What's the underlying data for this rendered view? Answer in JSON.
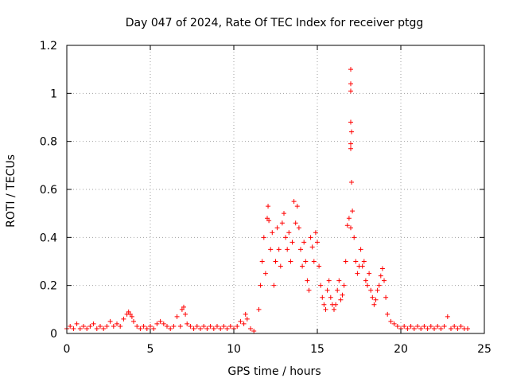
{
  "chart_data": {
    "type": "scatter",
    "title": "Day 047 of 2024, Rate Of TEC Index for receiver ptgg",
    "xlabel": "GPS time / hours",
    "ylabel": "ROTI / TECUs",
    "xlim": [
      0,
      25
    ],
    "ylim": [
      0,
      1.2
    ],
    "xticks": [
      0,
      5,
      10,
      15,
      20,
      25
    ],
    "xtick_labels": [
      "0",
      "5",
      "10",
      "15",
      "20",
      "25"
    ],
    "yticks": [
      0,
      0.2,
      0.4,
      0.6,
      0.8,
      1,
      1.2
    ],
    "ytick_labels": [
      "0",
      "0.2",
      "0.4",
      "0.6",
      "0.8",
      "1",
      "1.2"
    ],
    "grid": true,
    "marker": "+",
    "color": "#ff0000",
    "series": [
      {
        "points": [
          [
            0.0,
            0.02
          ],
          [
            0.2,
            0.03
          ],
          [
            0.4,
            0.02
          ],
          [
            0.6,
            0.04
          ],
          [
            0.8,
            0.02
          ],
          [
            1.0,
            0.03
          ],
          [
            1.2,
            0.02
          ],
          [
            1.4,
            0.03
          ],
          [
            1.6,
            0.04
          ],
          [
            1.8,
            0.02
          ],
          [
            2.0,
            0.03
          ],
          [
            2.2,
            0.02
          ],
          [
            2.4,
            0.03
          ],
          [
            2.6,
            0.05
          ],
          [
            2.8,
            0.03
          ],
          [
            3.0,
            0.04
          ],
          [
            3.2,
            0.03
          ],
          [
            3.4,
            0.06
          ],
          [
            3.6,
            0.08
          ],
          [
            3.7,
            0.09
          ],
          [
            3.8,
            0.08
          ],
          [
            3.9,
            0.07
          ],
          [
            4.0,
            0.05
          ],
          [
            4.2,
            0.03
          ],
          [
            4.4,
            0.02
          ],
          [
            4.6,
            0.03
          ],
          [
            4.8,
            0.02
          ],
          [
            5.0,
            0.03
          ],
          [
            5.2,
            0.02
          ],
          [
            5.4,
            0.04
          ],
          [
            5.6,
            0.05
          ],
          [
            5.8,
            0.04
          ],
          [
            6.0,
            0.03
          ],
          [
            6.2,
            0.02
          ],
          [
            6.4,
            0.03
          ],
          [
            6.6,
            0.07
          ],
          [
            6.8,
            0.03
          ],
          [
            6.9,
            0.1
          ],
          [
            7.0,
            0.11
          ],
          [
            7.1,
            0.08
          ],
          [
            7.2,
            0.04
          ],
          [
            7.4,
            0.03
          ],
          [
            7.6,
            0.02
          ],
          [
            7.8,
            0.03
          ],
          [
            8.0,
            0.02
          ],
          [
            8.2,
            0.03
          ],
          [
            8.4,
            0.02
          ],
          [
            8.6,
            0.03
          ],
          [
            8.8,
            0.02
          ],
          [
            9.0,
            0.03
          ],
          [
            9.2,
            0.02
          ],
          [
            9.4,
            0.03
          ],
          [
            9.6,
            0.02
          ],
          [
            9.8,
            0.03
          ],
          [
            10.0,
            0.02
          ],
          [
            10.2,
            0.03
          ],
          [
            10.4,
            0.05
          ],
          [
            10.6,
            0.04
          ],
          [
            10.7,
            0.08
          ],
          [
            10.8,
            0.06
          ],
          [
            11.0,
            0.02
          ],
          [
            11.2,
            0.01
          ],
          [
            11.5,
            0.1
          ],
          [
            11.6,
            0.2
          ],
          [
            11.7,
            0.3
          ],
          [
            11.8,
            0.4
          ],
          [
            11.9,
            0.25
          ],
          [
            12.0,
            0.48
          ],
          [
            12.05,
            0.53
          ],
          [
            12.1,
            0.47
          ],
          [
            12.2,
            0.35
          ],
          [
            12.3,
            0.42
          ],
          [
            12.4,
            0.2
          ],
          [
            12.5,
            0.3
          ],
          [
            12.6,
            0.44
          ],
          [
            12.7,
            0.35
          ],
          [
            12.8,
            0.28
          ],
          [
            12.9,
            0.46
          ],
          [
            13.0,
            0.5
          ],
          [
            13.1,
            0.4
          ],
          [
            13.2,
            0.35
          ],
          [
            13.3,
            0.42
          ],
          [
            13.4,
            0.3
          ],
          [
            13.5,
            0.38
          ],
          [
            13.6,
            0.55
          ],
          [
            13.7,
            0.46
          ],
          [
            13.8,
            0.53
          ],
          [
            13.9,
            0.44
          ],
          [
            14.0,
            0.35
          ],
          [
            14.1,
            0.28
          ],
          [
            14.2,
            0.38
          ],
          [
            14.3,
            0.3
          ],
          [
            14.4,
            0.22
          ],
          [
            14.5,
            0.18
          ],
          [
            14.6,
            0.4
          ],
          [
            14.7,
            0.36
          ],
          [
            14.8,
            0.3
          ],
          [
            14.9,
            0.42
          ],
          [
            15.0,
            0.38
          ],
          [
            15.1,
            0.28
          ],
          [
            15.2,
            0.2
          ],
          [
            15.3,
            0.15
          ],
          [
            15.4,
            0.12
          ],
          [
            15.5,
            0.1
          ],
          [
            15.6,
            0.18
          ],
          [
            15.7,
            0.22
          ],
          [
            15.8,
            0.15
          ],
          [
            15.9,
            0.12
          ],
          [
            16.0,
            0.1
          ],
          [
            16.1,
            0.12
          ],
          [
            16.2,
            0.18
          ],
          [
            16.3,
            0.22
          ],
          [
            16.4,
            0.14
          ],
          [
            16.5,
            0.16
          ],
          [
            16.6,
            0.2
          ],
          [
            16.7,
            0.3
          ],
          [
            16.8,
            0.45
          ],
          [
            16.9,
            0.48
          ],
          [
            17.0,
            1.1
          ],
          [
            17.0,
            1.04
          ],
          [
            17.0,
            1.01
          ],
          [
            17.0,
            0.88
          ],
          [
            17.05,
            0.84
          ],
          [
            17.0,
            0.79
          ],
          [
            17.0,
            0.77
          ],
          [
            17.05,
            0.63
          ],
          [
            17.1,
            0.51
          ],
          [
            17.0,
            0.44
          ],
          [
            17.2,
            0.4
          ],
          [
            17.3,
            0.3
          ],
          [
            17.4,
            0.25
          ],
          [
            17.5,
            0.28
          ],
          [
            17.6,
            0.35
          ],
          [
            17.7,
            0.28
          ],
          [
            17.8,
            0.3
          ],
          [
            17.9,
            0.22
          ],
          [
            18.0,
            0.2
          ],
          [
            18.1,
            0.25
          ],
          [
            18.2,
            0.18
          ],
          [
            18.3,
            0.15
          ],
          [
            18.4,
            0.12
          ],
          [
            18.5,
            0.14
          ],
          [
            18.6,
            0.18
          ],
          [
            18.7,
            0.2
          ],
          [
            18.8,
            0.24
          ],
          [
            18.9,
            0.27
          ],
          [
            19.0,
            0.22
          ],
          [
            19.1,
            0.15
          ],
          [
            19.2,
            0.08
          ],
          [
            19.4,
            0.05
          ],
          [
            19.6,
            0.04
          ],
          [
            19.8,
            0.03
          ],
          [
            20.0,
            0.02
          ],
          [
            20.2,
            0.03
          ],
          [
            20.4,
            0.02
          ],
          [
            20.6,
            0.03
          ],
          [
            20.8,
            0.02
          ],
          [
            21.0,
            0.03
          ],
          [
            21.2,
            0.02
          ],
          [
            21.4,
            0.03
          ],
          [
            21.6,
            0.02
          ],
          [
            21.8,
            0.03
          ],
          [
            22.0,
            0.02
          ],
          [
            22.2,
            0.03
          ],
          [
            22.4,
            0.02
          ],
          [
            22.6,
            0.03
          ],
          [
            22.8,
            0.07
          ],
          [
            23.0,
            0.02
          ],
          [
            23.2,
            0.03
          ],
          [
            23.4,
            0.02
          ],
          [
            23.6,
            0.03
          ],
          [
            23.8,
            0.02
          ],
          [
            24.0,
            0.02
          ]
        ]
      }
    ]
  }
}
